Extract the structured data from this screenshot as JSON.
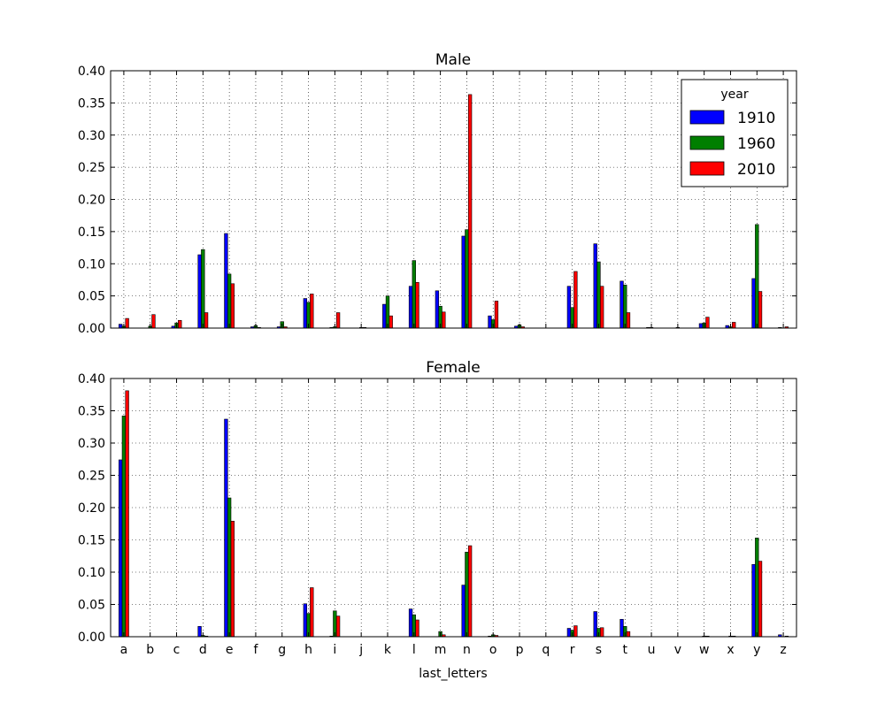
{
  "chart_data": {
    "type": "bar",
    "categories": [
      "a",
      "b",
      "c",
      "d",
      "e",
      "f",
      "g",
      "h",
      "i",
      "j",
      "k",
      "l",
      "m",
      "n",
      "o",
      "p",
      "q",
      "r",
      "s",
      "t",
      "u",
      "v",
      "w",
      "x",
      "y",
      "z"
    ],
    "xlabel": "last_letters",
    "legend": {
      "title": "year",
      "placement": "top-right"
    },
    "colors": {
      "1910": "#0000ff",
      "1960": "#007f00",
      "2010": "#ff0000"
    },
    "grid": true,
    "ylim": [
      0,
      0.4
    ],
    "yticks": [
      "0.00",
      "0.05",
      "0.10",
      "0.15",
      "0.20",
      "0.25",
      "0.30",
      "0.35",
      "0.40"
    ],
    "panels": [
      {
        "title": "Male",
        "series": [
          {
            "name": "1910",
            "values": [
              0.006,
              0.0,
              0.003,
              0.114,
              0.147,
              0.002,
              0.002,
              0.046,
              0.001,
              0.0,
              0.037,
              0.065,
              0.058,
              0.143,
              0.019,
              0.003,
              0.0,
              0.065,
              0.131,
              0.073,
              0.001,
              0.0,
              0.007,
              0.004,
              0.077,
              0.001
            ]
          },
          {
            "name": "1960",
            "values": [
              0.003,
              0.003,
              0.008,
              0.122,
              0.084,
              0.004,
              0.01,
              0.04,
              0.002,
              0.001,
              0.05,
              0.105,
              0.034,
              0.153,
              0.013,
              0.005,
              0.0,
              0.032,
              0.103,
              0.067,
              0.001,
              0.001,
              0.008,
              0.002,
              0.161,
              0.0
            ]
          },
          {
            "name": "2010",
            "values": [
              0.015,
              0.021,
              0.012,
              0.024,
              0.069,
              0.001,
              0.002,
              0.053,
              0.024,
              0.001,
              0.019,
              0.071,
              0.025,
              0.363,
              0.042,
              0.002,
              0.0,
              0.088,
              0.065,
              0.024,
              0.0,
              0.0,
              0.017,
              0.009,
              0.057,
              0.002
            ]
          }
        ]
      },
      {
        "title": "Female",
        "series": [
          {
            "name": "1910",
            "values": [
              0.274,
              0.0,
              0.0,
              0.016,
              0.337,
              0.0,
              0.0,
              0.051,
              0.001,
              0.0,
              0.0,
              0.043,
              0.0,
              0.08,
              0.001,
              0.0,
              0.0,
              0.013,
              0.039,
              0.027,
              0.0,
              0.0,
              0.0,
              0.0,
              0.112,
              0.003
            ]
          },
          {
            "name": "1960",
            "values": [
              0.342,
              0.0,
              0.0,
              0.002,
              0.215,
              0.0,
              0.0,
              0.036,
              0.04,
              0.0,
              0.0,
              0.034,
              0.008,
              0.131,
              0.003,
              0.0,
              0.0,
              0.01,
              0.013,
              0.016,
              0.0,
              0.0,
              0.001,
              0.001,
              0.153,
              0.0
            ]
          },
          {
            "name": "2010",
            "values": [
              0.381,
              0.0,
              0.0,
              0.001,
              0.179,
              0.0,
              0.0,
              0.076,
              0.032,
              0.0,
              0.0,
              0.026,
              0.003,
              0.141,
              0.002,
              0.0,
              0.0,
              0.017,
              0.014,
              0.008,
              0.0,
              0.0,
              0.001,
              0.001,
              0.117,
              0.001
            ]
          }
        ]
      }
    ]
  }
}
